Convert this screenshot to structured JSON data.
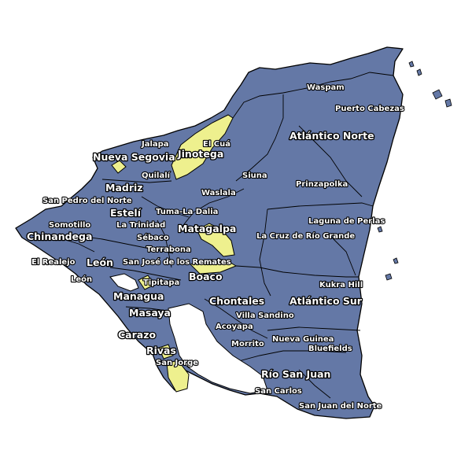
{
  "map": {
    "colors": {
      "land": "#6478a6",
      "highlight": "#eef08e",
      "border": "#000000",
      "water": "#ffffff"
    },
    "highlighted_municipalities": [
      "El Cuá",
      "Jalapa",
      "Quilalí",
      "Matagalpa",
      "Boaco",
      "San Jorge",
      "Rivas",
      "Managua"
    ],
    "departments": {
      "nueva_segovia": "Nueva Segovia",
      "jinotega": "Jinotega",
      "madriz": "Madriz",
      "esteli": "Estelí",
      "chinandega": "Chinandega",
      "leon": "León",
      "matagalpa": "Matagalpa",
      "boaco": "Boaco",
      "managua": "Managua",
      "masaya": "Masaya",
      "carazo": "Carazo",
      "rivas": "Rivas",
      "chontales": "Chontales",
      "atlantico_norte": "Atlántico Norte",
      "atlantico_sur": "Atlántico Sur",
      "rio_san_juan": "Río San Juan"
    },
    "municipalities": {
      "waspam": "Waspam",
      "puerto_cabezas": "Puerto Cabezas",
      "el_cua": "El Cuá",
      "jalapa": "Jalapa",
      "quilali": "Quilalí",
      "siuna": "Siuna",
      "prinzapolka": "Prinzapolka",
      "waslala": "Waslala",
      "san_pedro_del_norte": "San Pedro del Norte",
      "tuma_la_dalia": "Tuma-La Dalia",
      "laguna_de_perlas": "Laguna de Perlas",
      "somotillo": "Somotillo",
      "la_trinidad": "La Trinidad",
      "sebaco": "Sébaco",
      "la_cruz_de_rio_grande": "La Cruz de Río Grande",
      "terrabona": "Terrabona",
      "el_realejo": "El Realejo",
      "san_jose_de_los_remates": "San José de los Remates",
      "kukra_hill": "Kukra Hill",
      "leon_mun": "León",
      "tipitapa": "Tipitapa",
      "villa_sandino": "Villa Sandino",
      "acoyapa": "Acoyapa",
      "nueva_guinea": "Nueva Guinea",
      "morrito": "Morrito",
      "bluefields": "Bluefields",
      "san_jorge": "San Jorge",
      "san_carlos": "San Carlos",
      "san_juan_del_norte": "San Juan del Norte"
    }
  }
}
